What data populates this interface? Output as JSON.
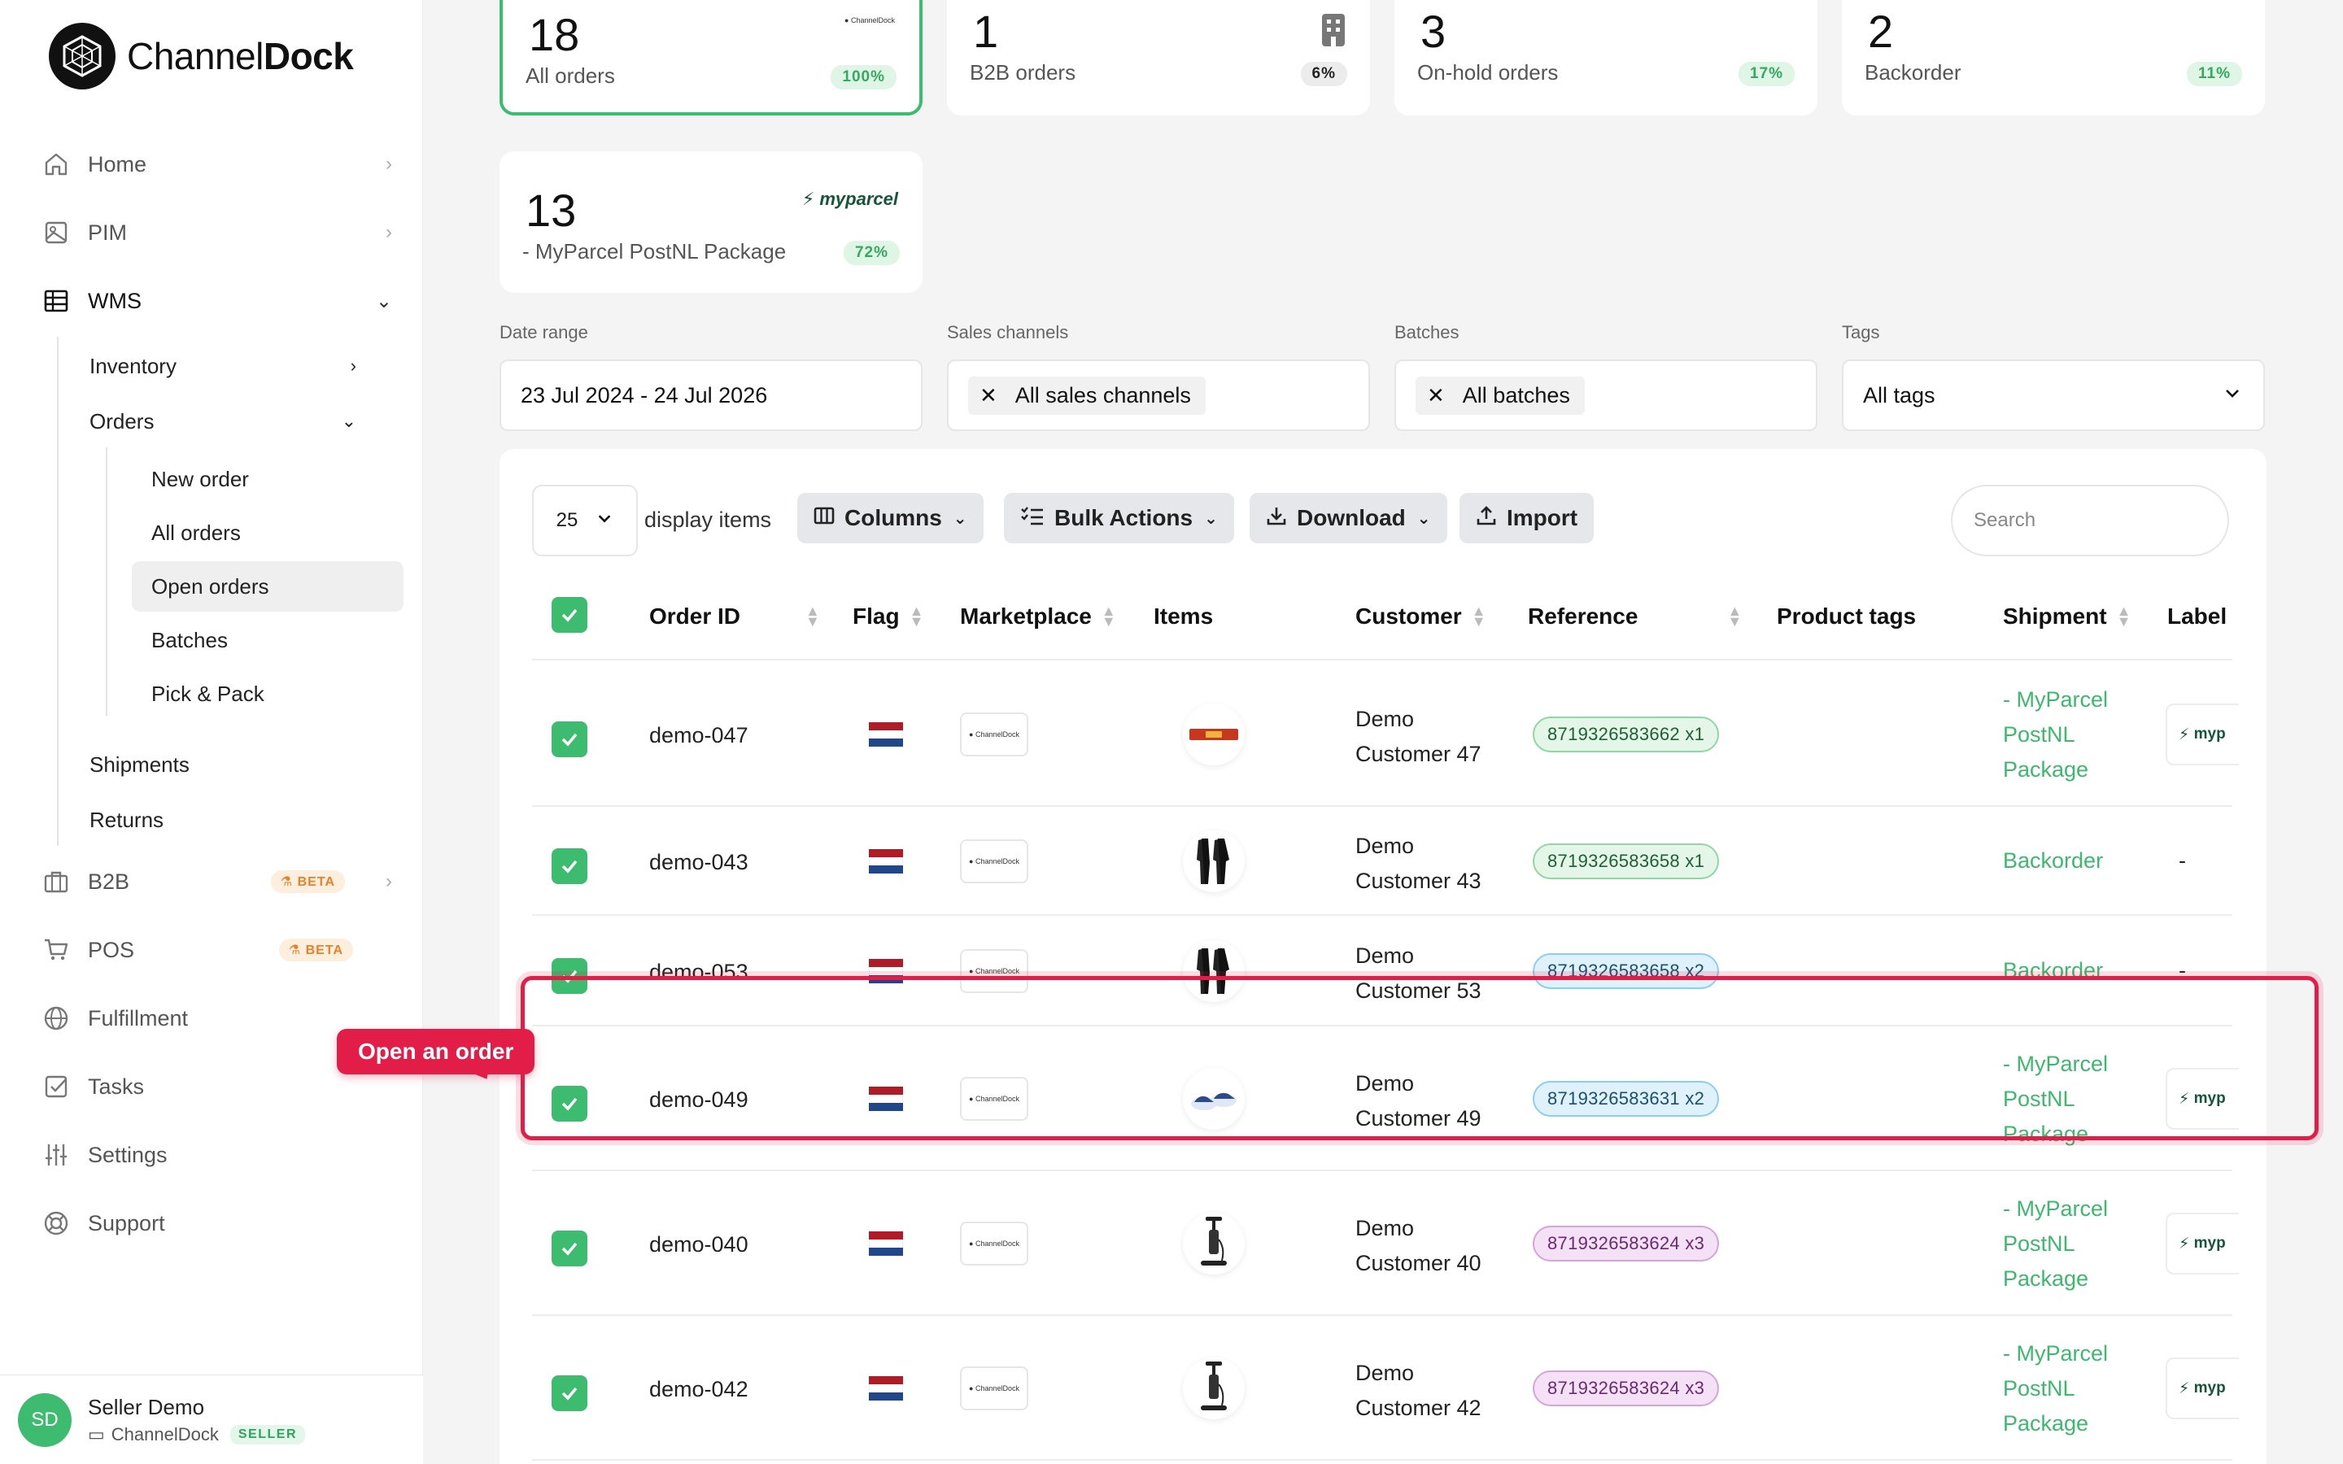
{
  "brand": {
    "name_regular": "Channel",
    "name_bold": "Dock"
  },
  "nav": {
    "home": "Home",
    "pim": "PIM",
    "wms": "WMS",
    "inventory": "Inventory",
    "orders": "Orders",
    "new_order": "New order",
    "all_orders": "All orders",
    "open_orders": "Open orders",
    "batches": "Batches",
    "pick_pack": "Pick & Pack",
    "shipments": "Shipments",
    "returns": "Returns",
    "b2b": "B2B",
    "pos": "POS",
    "beta_badge": "BETA",
    "fulfillment": "Fulfillment",
    "tasks": "Tasks",
    "settings": "Settings",
    "support": "Support"
  },
  "user": {
    "initials": "SD",
    "name": "Seller Demo",
    "company": "ChannelDock",
    "role": "SELLER"
  },
  "stats": [
    {
      "count": "18",
      "label": "All orders",
      "pct": "100%"
    },
    {
      "count": "1",
      "label": "B2B orders",
      "pct": "6%"
    },
    {
      "count": "3",
      "label": "On-hold orders",
      "pct": "17%"
    },
    {
      "count": "2",
      "label": "Backorder",
      "pct": "11%"
    },
    {
      "count": "13",
      "label": "- MyParcel PostNL Package",
      "pct": "72%",
      "logo": "myparcel"
    }
  ],
  "filters": {
    "date_label": "Date range",
    "date_value": "23 Jul 2024 - 24 Jul 2026",
    "channels_label": "Sales channels",
    "channels_value": "All sales channels",
    "batches_label": "Batches",
    "batches_value": "All batches",
    "tags_label": "Tags",
    "tags_value": "All tags"
  },
  "toolbar": {
    "per_page": "25",
    "display_items": "display items",
    "columns": "Columns",
    "bulk_actions": "Bulk Actions",
    "download": "Download",
    "import": "Import",
    "search_placeholder": "Search"
  },
  "table": {
    "headers": {
      "order_id": "Order ID",
      "flag": "Flag",
      "marketplace": "Marketplace",
      "items": "Items",
      "customer": "Customer",
      "reference": "Reference",
      "product_tags": "Product tags",
      "shipment": "Shipment",
      "label": "Label"
    },
    "rows": [
      {
        "id": "demo-047",
        "customer_1": "Demo",
        "customer_2": "Customer 47",
        "reference": "8719326583662 x1",
        "ref_color": "green",
        "ship_1": "- MyParcel",
        "ship_2": "PostNL",
        "ship_3": "Package",
        "label": "myp",
        "item": "bar"
      },
      {
        "id": "demo-043",
        "customer_1": "Demo",
        "customer_2": "Customer 43",
        "reference": "8719326583658 x1",
        "ref_color": "green",
        "ship_1": "Backorder",
        "ship_2": "",
        "ship_3": "",
        "label": "-",
        "item": "wetsuit"
      },
      {
        "id": "demo-053",
        "customer_1": "Demo",
        "customer_2": "Customer 53",
        "reference": "8719326583658 x2",
        "ref_color": "blue",
        "ship_1": "Backorder",
        "ship_2": "",
        "ship_3": "",
        "label": "-",
        "item": "wetsuit"
      },
      {
        "id": "demo-049",
        "customer_1": "Demo",
        "customer_2": "Customer 49",
        "reference": "8719326583631 x2",
        "ref_color": "blue",
        "ship_1": "- MyParcel",
        "ship_2": "PostNL",
        "ship_3": "Package",
        "label": "myp",
        "item": "shoes"
      },
      {
        "id": "demo-040",
        "customer_1": "Demo",
        "customer_2": "Customer 40",
        "reference": "8719326583624 x3",
        "ref_color": "purple",
        "ship_1": "- MyParcel",
        "ship_2": "PostNL",
        "ship_3": "Package",
        "label": "myp",
        "item": "pump"
      },
      {
        "id": "demo-042",
        "customer_1": "Demo",
        "customer_2": "Customer 42",
        "reference": "8719326583624 x3",
        "ref_color": "purple",
        "ship_1": "- MyParcel",
        "ship_2": "PostNL",
        "ship_3": "Package",
        "label": "myp",
        "item": "pump"
      }
    ]
  },
  "tutorial": {
    "label": "Open an order"
  },
  "colors": {
    "accent": "#3dbb6f",
    "highlight": "#e11d48"
  }
}
